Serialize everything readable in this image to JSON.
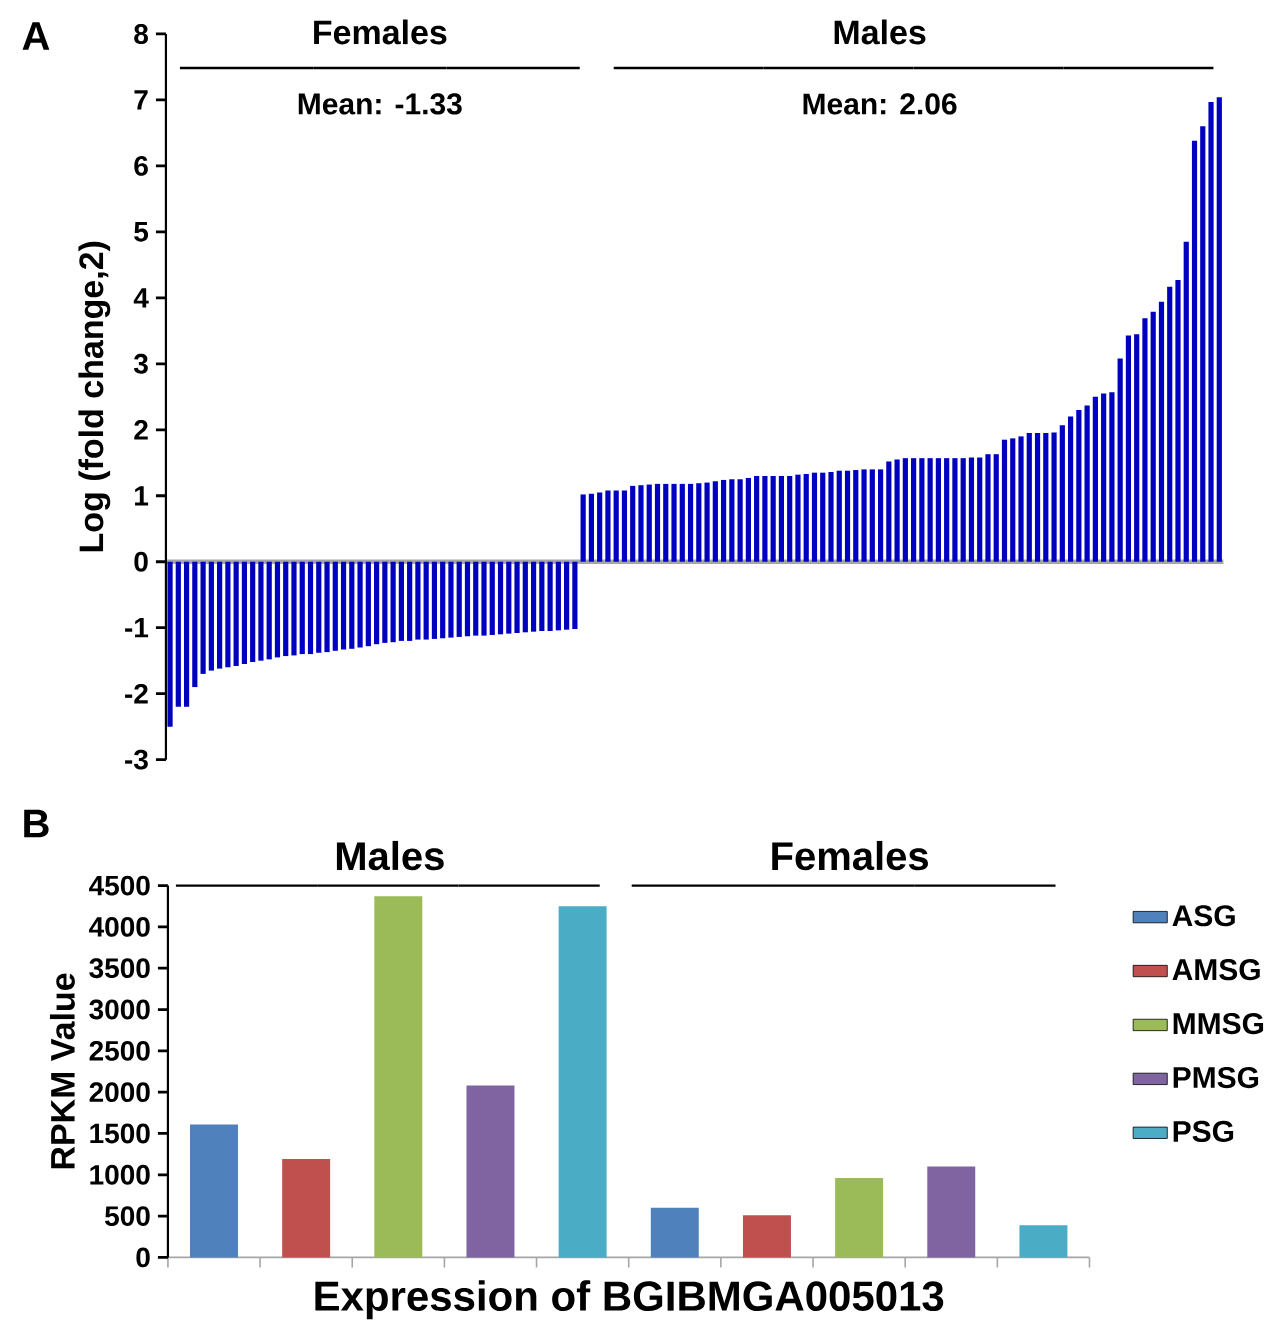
{
  "chart_data": [
    {
      "type": "bar",
      "ylabel": "Log (fold change,2)",
      "color": "#0000c0",
      "ylim": [
        -3,
        8
      ],
      "yticks": [
        -3,
        -2,
        -1,
        0,
        1,
        2,
        3,
        4,
        5,
        6,
        7,
        8
      ],
      "tick_labels": "y",
      "annotations": [
        "A",
        "Females",
        "Males",
        "Mean: -1.33",
        "Mean: 2.06"
      ],
      "categories": [
        null,
        null,
        null,
        null,
        null,
        null,
        null,
        null,
        null,
        null,
        null,
        null,
        null,
        null,
        null,
        null,
        null,
        null,
        null,
        null,
        null,
        null,
        null,
        null,
        null,
        null,
        null,
        null,
        null,
        null,
        null,
        null,
        null,
        null,
        null,
        null,
        null,
        null,
        null,
        null,
        null,
        null,
        null,
        null,
        null,
        null,
        null,
        null,
        null,
        null,
        null,
        null,
        null,
        null,
        null,
        null,
        null,
        null,
        null,
        null,
        null,
        null,
        null,
        null,
        null,
        null,
        null,
        null,
        null,
        null,
        null,
        null,
        null,
        null,
        null,
        null,
        null,
        null,
        null,
        null,
        null,
        null,
        null,
        null,
        null,
        null,
        null,
        null,
        null,
        null,
        null,
        null,
        null,
        null,
        null,
        null,
        null,
        null,
        null,
        null,
        null,
        null,
        null,
        null,
        null,
        null,
        null,
        null,
        null,
        null,
        null,
        null,
        null,
        null,
        null,
        null,
        null,
        null,
        null,
        null,
        null,
        null,
        null,
        null,
        null,
        null,
        null,
        null
      ],
      "values": [
        -2.5,
        -2.2,
        -2.2,
        -1.9,
        -1.7,
        -1.65,
        -1.62,
        -1.6,
        -1.58,
        -1.55,
        -1.52,
        -1.5,
        -1.48,
        -1.45,
        -1.43,
        -1.42,
        -1.4,
        -1.4,
        -1.38,
        -1.37,
        -1.35,
        -1.33,
        -1.32,
        -1.3,
        -1.28,
        -1.25,
        -1.23,
        -1.22,
        -1.2,
        -1.2,
        -1.18,
        -1.18,
        -1.17,
        -1.16,
        -1.15,
        -1.14,
        -1.13,
        -1.12,
        -1.12,
        -1.11,
        -1.1,
        -1.09,
        -1.08,
        -1.07,
        -1.06,
        -1.05,
        -1.05,
        -1.04,
        -1.03,
        -1.02,
        1.02,
        1.03,
        1.05,
        1.08,
        1.08,
        1.08,
        1.15,
        1.16,
        1.17,
        1.18,
        1.18,
        1.18,
        1.18,
        1.18,
        1.19,
        1.2,
        1.22,
        1.24,
        1.25,
        1.25,
        1.27,
        1.3,
        1.3,
        1.3,
        1.3,
        1.3,
        1.32,
        1.33,
        1.35,
        1.35,
        1.36,
        1.38,
        1.38,
        1.39,
        1.4,
        1.4,
        1.4,
        1.52,
        1.55,
        1.57,
        1.57,
        1.57,
        1.57,
        1.57,
        1.57,
        1.57,
        1.57,
        1.58,
        1.58,
        1.63,
        1.63,
        1.85,
        1.87,
        1.9,
        1.95,
        1.95,
        1.95,
        1.96,
        2.07,
        2.2,
        2.3,
        2.37,
        2.5,
        2.55,
        2.57,
        3.08,
        3.43,
        3.45,
        3.69,
        3.79,
        3.94,
        4.17,
        4.27,
        4.85,
        6.38,
        6.6,
        6.97,
        7.04
      ]
    },
    {
      "type": "bar",
      "ylabel": "RPKM Value",
      "xlabel": "Expression of BGIBMGA005013",
      "ylim": [
        0,
        4500
      ],
      "yticks": [
        0,
        500,
        1000,
        1500,
        2000,
        2500,
        3000,
        3500,
        4000,
        4500
      ],
      "legend": "right",
      "annotations": [
        "B"
      ],
      "categories": [
        "Males",
        "Females"
      ],
      "series": [
        {
          "name": "ASG",
          "color": "#4f81bd",
          "values": [
            1610,
            600
          ]
        },
        {
          "name": "AMSG",
          "color": "#c0504d",
          "values": [
            1190,
            510
          ]
        },
        {
          "name": "MMSG",
          "color": "#9bbb59",
          "values": [
            4370,
            960
          ]
        },
        {
          "name": "PMSG",
          "color": "#8064a2",
          "values": [
            2080,
            1100
          ]
        },
        {
          "name": "PSG",
          "color": "#4bacc6",
          "values": [
            4250,
            390
          ]
        }
      ]
    }
  ]
}
